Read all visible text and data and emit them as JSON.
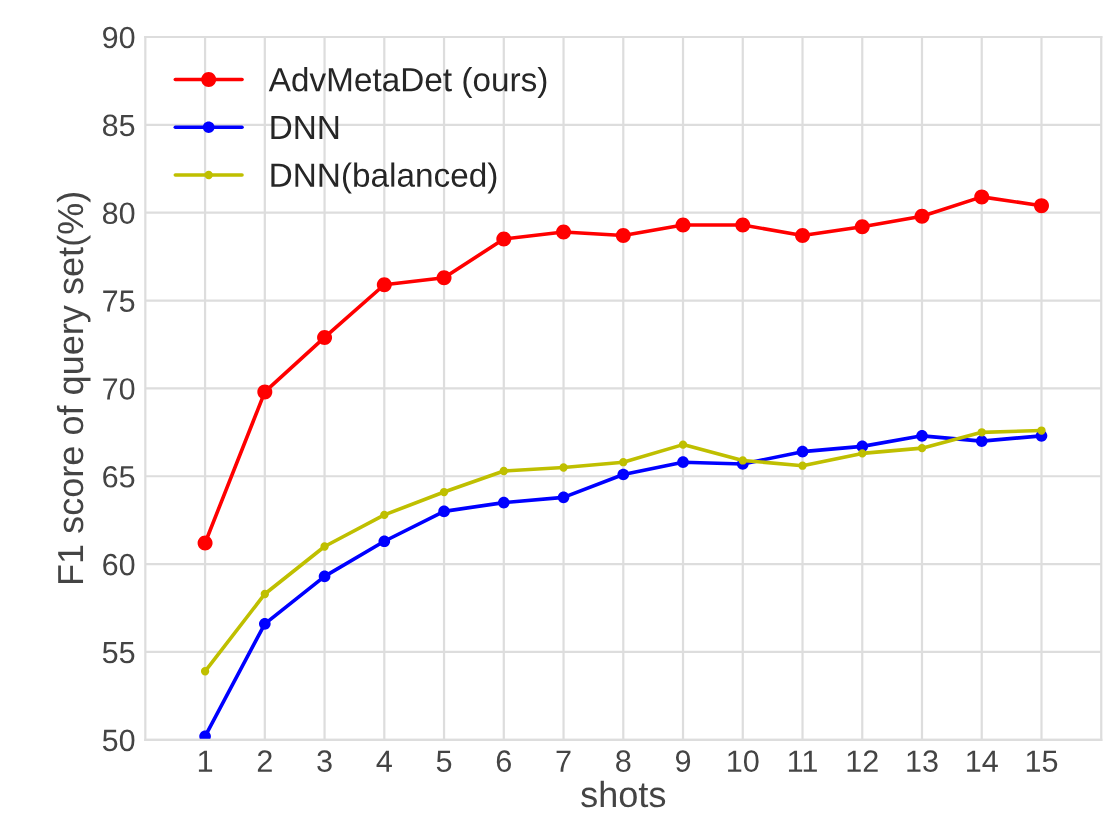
{
  "chart_data": {
    "type": "line",
    "xlabel": "shots",
    "ylabel": "F1 score of query set(%)",
    "x": [
      1,
      2,
      3,
      4,
      5,
      6,
      7,
      8,
      9,
      10,
      11,
      12,
      13,
      14,
      15
    ],
    "series": [
      {
        "name": "AdvMetaDet (ours)",
        "color": "#ff0000",
        "values": [
          61.2,
          69.8,
          72.9,
          75.9,
          76.3,
          78.5,
          78.9,
          78.7,
          79.3,
          79.3,
          78.7,
          79.2,
          79.8,
          80.9,
          80.4
        ]
      },
      {
        "name": "DNN",
        "color": "#0000ff",
        "values": [
          50.2,
          56.6,
          59.3,
          61.3,
          63.0,
          63.5,
          63.8,
          65.1,
          65.8,
          65.7,
          66.4,
          66.7,
          67.3,
          67.0,
          67.3
        ]
      },
      {
        "name": "DNN(balanced)",
        "color": "#bfbf00",
        "values": [
          53.9,
          58.3,
          61.0,
          62.8,
          64.1,
          65.3,
          65.5,
          65.8,
          66.8,
          65.9,
          65.6,
          66.3,
          66.6,
          67.5,
          67.6
        ]
      }
    ],
    "xlim": [
      0,
      16
    ],
    "xticks": [
      1,
      2,
      3,
      4,
      5,
      6,
      7,
      8,
      9,
      10,
      11,
      12,
      13,
      14,
      15
    ],
    "ylim": [
      50,
      90
    ],
    "yticks": [
      50,
      55,
      60,
      65,
      70,
      75,
      80,
      85,
      90
    ],
    "grid": true,
    "legend": "top left",
    "marker": "circle",
    "line_style": "solid"
  }
}
